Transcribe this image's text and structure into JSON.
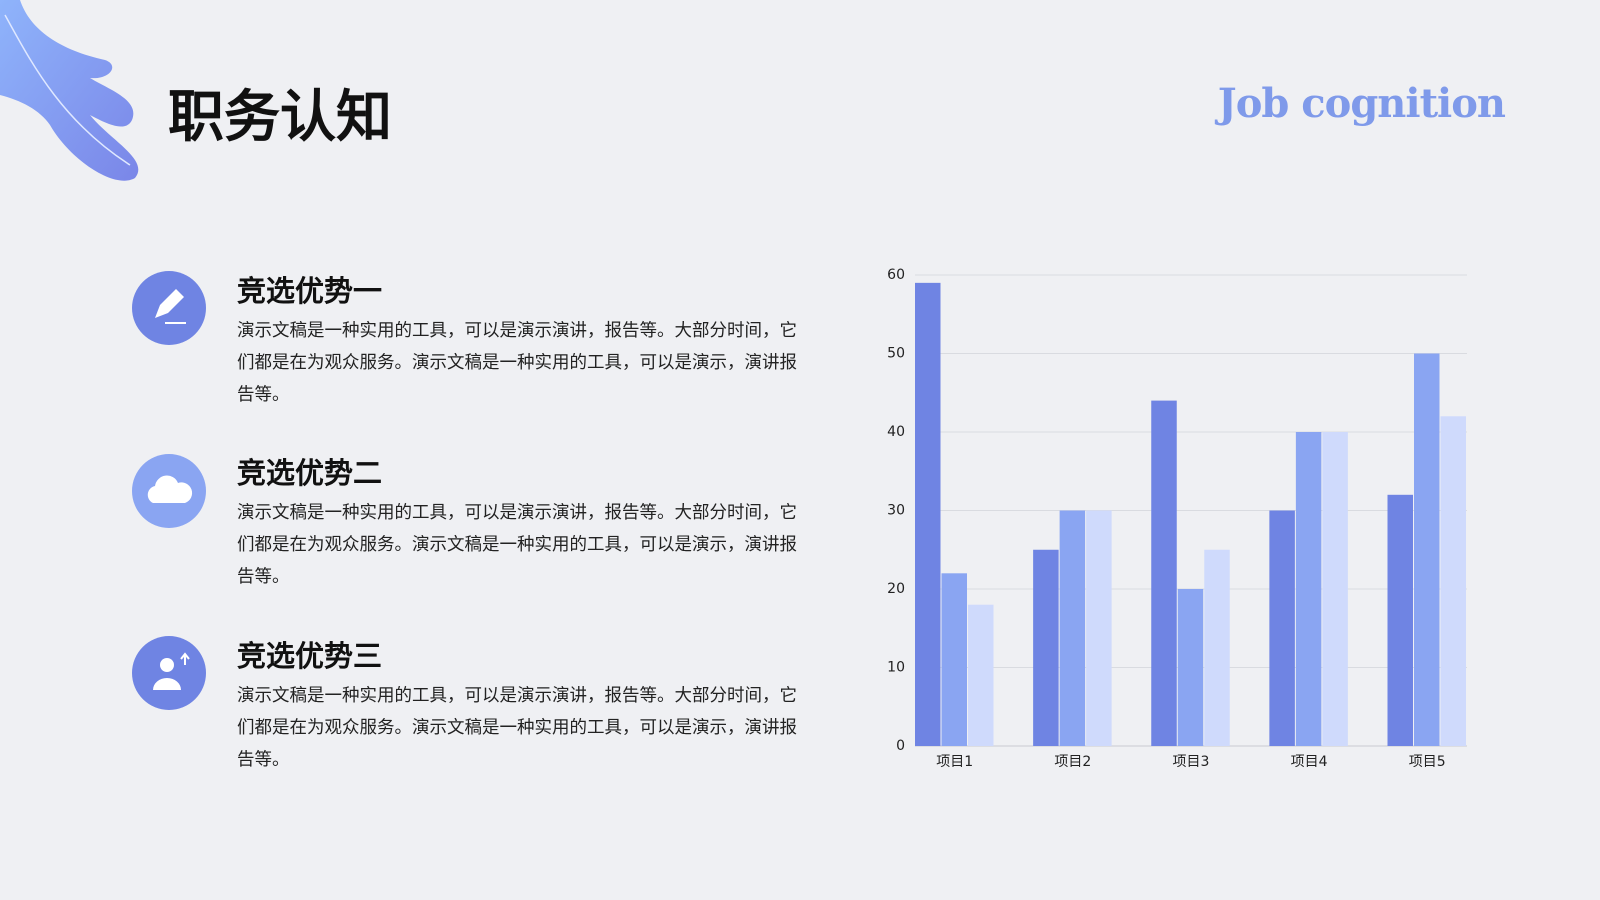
{
  "header": {
    "title": "职务认知",
    "subtitle": "Job cognition"
  },
  "items": [
    {
      "title": "竞选优势一",
      "body": "演示文稿是一种实用的工具，可以是演示演讲，报告等。大部分时间，它们都是在为观众服务。演示文稿是一种实用的工具，可以是演示，演讲报告等。"
    },
    {
      "title": "竞选优势二",
      "body": "演示文稿是一种实用的工具，可以是演示演讲，报告等。大部分时间，它们都是在为观众服务。演示文稿是一种实用的工具，可以是演示，演讲报告等。"
    },
    {
      "title": "竞选优势三",
      "body": "演示文稿是一种实用的工具，可以是演示演讲，报告等。大部分时间，它们都是在为观众服务。演示文稿是一种实用的工具，可以是演示，演讲报告等。"
    }
  ],
  "chart_data": {
    "type": "bar",
    "categories": [
      "项目1",
      "项目2",
      "项目3",
      "项目4",
      "项目5"
    ],
    "series": [
      {
        "color": "#6f84e3",
        "values": [
          59,
          25,
          44,
          30,
          32
        ]
      },
      {
        "color": "#8aa5f2",
        "values": [
          22,
          30,
          20,
          40,
          50
        ]
      },
      {
        "color": "#cfdafc",
        "values": [
          18,
          30,
          25,
          40,
          42
        ]
      }
    ],
    "ylim": [
      0,
      60
    ],
    "yticks": [
      0,
      10,
      20,
      30,
      40,
      50,
      60
    ],
    "grid": true
  }
}
